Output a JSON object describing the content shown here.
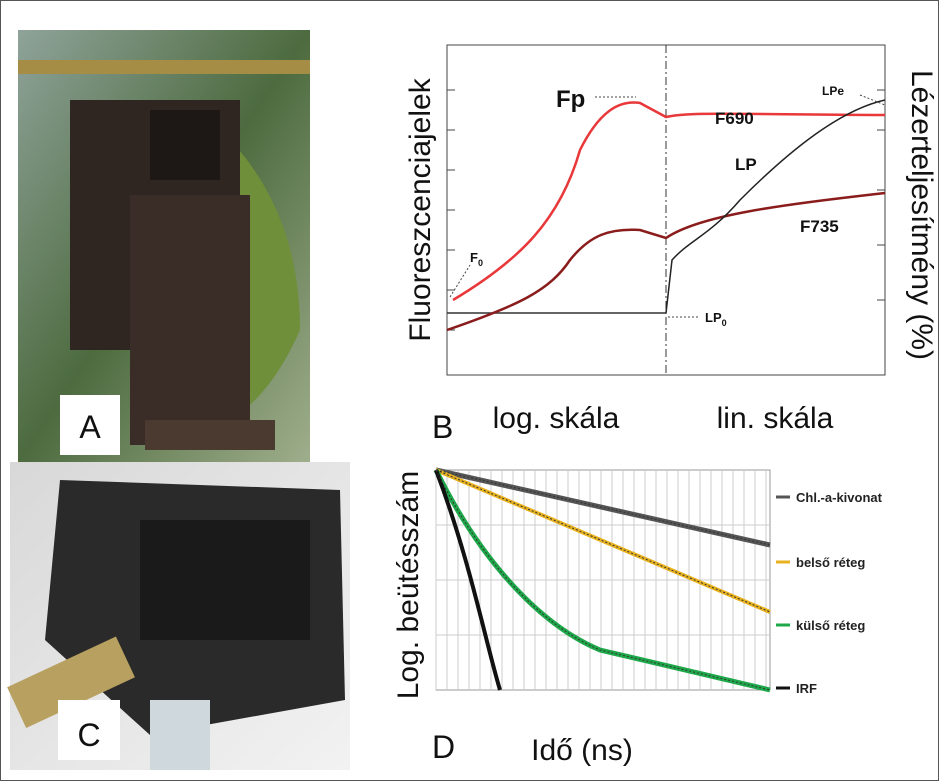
{
  "panels": {
    "a": {
      "label": "A"
    },
    "b": {
      "label": "B",
      "y_label": "Fluoreszcenciajelek",
      "y2_label": "Lézerteljesítmény (%)",
      "x_labels": [
        "log. skála",
        "lin. skála"
      ],
      "annotations": {
        "fp": "Fp",
        "f690": "F690",
        "lp": "LP",
        "lpe": "LPe",
        "f735": "F735",
        "f0": {
          "main": "F",
          "sub": "0"
        },
        "lp0": {
          "main": "LP",
          "sub": "0"
        }
      }
    },
    "c": {
      "label": "C"
    },
    "d": {
      "label": "D",
      "y_label": "Log. beütésszám",
      "x_label": "Idő (ns)",
      "legend": [
        "Chl.-a-kivonat",
        "belső réteg",
        "külső réteg",
        "IRF"
      ]
    }
  }
}
